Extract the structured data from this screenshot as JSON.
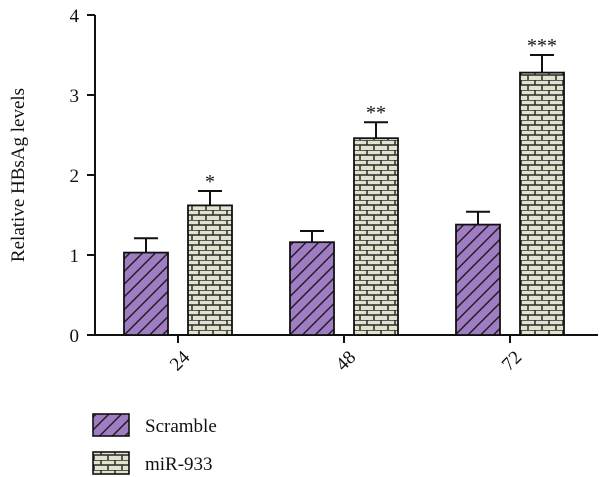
{
  "chart_data": {
    "type": "bar",
    "title": "",
    "xlabel": "",
    "ylabel": "Relative HBsAg levels",
    "categories": [
      "24",
      "48",
      "72"
    ],
    "ylim": [
      0,
      4
    ],
    "yticks": [
      0,
      1,
      2,
      3,
      4
    ],
    "grid": false,
    "legend_position": "bottom-left",
    "series": [
      {
        "name": "Scramble",
        "values": [
          1.03,
          1.16,
          1.38
        ],
        "errors": [
          0.18,
          0.14,
          0.16
        ],
        "significance": [
          "",
          "",
          ""
        ],
        "color": "#a07cc4",
        "pattern": "diagonal-hatch"
      },
      {
        "name": "miR-933",
        "values": [
          1.62,
          2.46,
          3.28
        ],
        "errors": [
          0.18,
          0.2,
          0.22
        ],
        "significance": [
          "*",
          "**",
          "***"
        ],
        "color": "#e2e2cf",
        "pattern": "brick"
      }
    ]
  }
}
